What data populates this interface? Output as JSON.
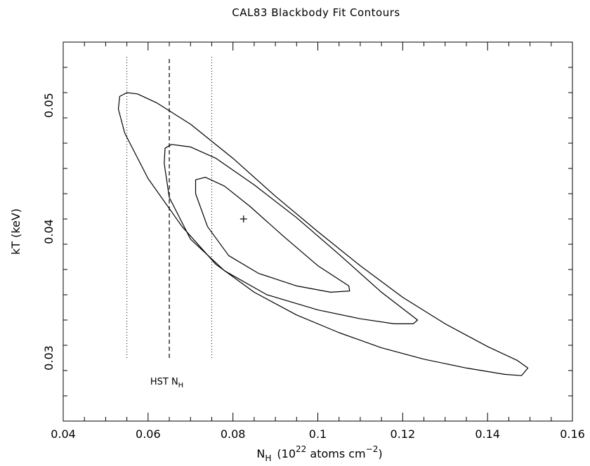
{
  "chart_data": {
    "type": "contour",
    "title": "CAL83 Blackbody Fit Contours",
    "xlabel": {
      "base": "N",
      "base_sub": "H",
      "paren_open": "(10",
      "exp": "22",
      "mid": " atoms cm",
      "exp2": "−2",
      "paren_close": ")"
    },
    "ylabel": "kT (keV)",
    "xlim": [
      0.04,
      0.16
    ],
    "ylim": [
      0.025,
      0.055
    ],
    "x_ticks": [
      {
        "value": 0.04,
        "label": "0.04"
      },
      {
        "value": 0.06,
        "label": "0.06"
      },
      {
        "value": 0.08,
        "label": "0.08"
      },
      {
        "value": 0.1,
        "label": "0.1"
      },
      {
        "value": 0.12,
        "label": "0.12"
      },
      {
        "value": 0.14,
        "label": "0.14"
      },
      {
        "value": 0.16,
        "label": "0.16"
      }
    ],
    "x_minor_step": 0.005,
    "y_ticks": [
      {
        "value": 0.03,
        "label": "0.03"
      },
      {
        "value": 0.04,
        "label": "0.04"
      },
      {
        "value": 0.05,
        "label": "0.05"
      }
    ],
    "y_minor_step": 0.002,
    "best_fit": {
      "x": 0.0825,
      "y": 0.041,
      "marker": "+"
    },
    "contours": [
      {
        "level": "inner",
        "points": [
          [
            0.0735,
            0.0443
          ],
          [
            0.0712,
            0.0441
          ],
          [
            0.0712,
            0.043
          ],
          [
            0.074,
            0.0404
          ],
          [
            0.079,
            0.0381
          ],
          [
            0.086,
            0.0367
          ],
          [
            0.095,
            0.0357
          ],
          [
            0.103,
            0.0352
          ],
          [
            0.1075,
            0.0353
          ],
          [
            0.1073,
            0.0357
          ],
          [
            0.1,
            0.0373
          ],
          [
            0.092,
            0.0396
          ],
          [
            0.084,
            0.042
          ],
          [
            0.078,
            0.0436
          ],
          [
            0.0735,
            0.0443
          ]
        ]
      },
      {
        "level": "middle",
        "points": [
          [
            0.0655,
            0.0469
          ],
          [
            0.064,
            0.0466
          ],
          [
            0.0638,
            0.0454
          ],
          [
            0.065,
            0.0427
          ],
          [
            0.07,
            0.0394
          ],
          [
            0.078,
            0.0369
          ],
          [
            0.088,
            0.035
          ],
          [
            0.1,
            0.0338
          ],
          [
            0.11,
            0.0331
          ],
          [
            0.118,
            0.0327
          ],
          [
            0.1225,
            0.0327
          ],
          [
            0.1235,
            0.033
          ],
          [
            0.115,
            0.0352
          ],
          [
            0.105,
            0.0382
          ],
          [
            0.095,
            0.0411
          ],
          [
            0.085,
            0.0437
          ],
          [
            0.076,
            0.0458
          ],
          [
            0.07,
            0.0467
          ],
          [
            0.0655,
            0.0469
          ]
        ]
      },
      {
        "level": "outer",
        "points": [
          [
            0.055,
            0.051
          ],
          [
            0.0533,
            0.0507
          ],
          [
            0.053,
            0.0497
          ],
          [
            0.0545,
            0.0478
          ],
          [
            0.06,
            0.0442
          ],
          [
            0.068,
            0.0404
          ],
          [
            0.076,
            0.0374
          ],
          [
            0.085,
            0.0352
          ],
          [
            0.095,
            0.0334
          ],
          [
            0.105,
            0.032
          ],
          [
            0.115,
            0.0308
          ],
          [
            0.125,
            0.0299
          ],
          [
            0.135,
            0.0292
          ],
          [
            0.144,
            0.0287
          ],
          [
            0.148,
            0.0286
          ],
          [
            0.1495,
            0.0292
          ],
          [
            0.147,
            0.0298
          ],
          [
            0.14,
            0.0309
          ],
          [
            0.13,
            0.0327
          ],
          [
            0.12,
            0.0348
          ],
          [
            0.11,
            0.0373
          ],
          [
            0.1,
            0.04
          ],
          [
            0.09,
            0.0428
          ],
          [
            0.08,
            0.0458
          ],
          [
            0.07,
            0.0485
          ],
          [
            0.062,
            0.0502
          ],
          [
            0.0575,
            0.0509
          ],
          [
            0.055,
            0.051
          ]
        ]
      }
    ],
    "reference_lines": [
      {
        "x": 0.055,
        "y_range": [
          0.03,
          0.054
        ],
        "style": "dotted"
      },
      {
        "x": 0.065,
        "y_range": [
          0.03,
          0.0538
        ],
        "style": "dashed"
      },
      {
        "x": 0.075,
        "y_range": [
          0.03,
          0.054
        ],
        "style": "dotted"
      }
    ],
    "annotation": {
      "text": "HST N",
      "sub": "H",
      "x": 0.0605,
      "y": 0.0279
    }
  }
}
